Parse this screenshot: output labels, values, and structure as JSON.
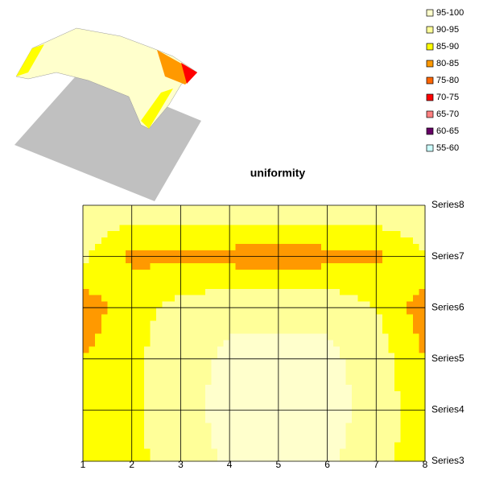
{
  "chart_data": {
    "type": "contour",
    "title": "uniformity",
    "x": [
      1,
      2,
      3,
      4,
      5,
      6,
      7,
      8
    ],
    "categories": [
      "Series3",
      "Series4",
      "Series5",
      "Series6",
      "Series7",
      "Series8"
    ],
    "z": [
      [
        87,
        89,
        92,
        96,
        96,
        96,
        92,
        87
      ],
      [
        87,
        89,
        93,
        97,
        97,
        97,
        93,
        87
      ],
      [
        85,
        89,
        93,
        96,
        96,
        96,
        93,
        85
      ],
      [
        82,
        88,
        92,
        94,
        94,
        94,
        90,
        82
      ],
      [
        91,
        84,
        84,
        83,
        82,
        83,
        84,
        90
      ],
      [
        93,
        93,
        94,
        94,
        95,
        94,
        94,
        93
      ]
    ],
    "bands": [
      {
        "name": "95-100",
        "color": "#ffffcc"
      },
      {
        "name": "90-95",
        "color": "#ffff99"
      },
      {
        "name": "85-90",
        "color": "#ffff00"
      },
      {
        "name": "80-85",
        "color": "#ff9900"
      },
      {
        "name": "75-80",
        "color": "#ff6600"
      },
      {
        "name": "70-75",
        "color": "#ff0000"
      },
      {
        "name": "65-70",
        "color": "#ff8080"
      },
      {
        "name": "60-65",
        "color": "#660066"
      },
      {
        "name": "55-60",
        "color": "#ccffff"
      }
    ],
    "grid": true
  }
}
